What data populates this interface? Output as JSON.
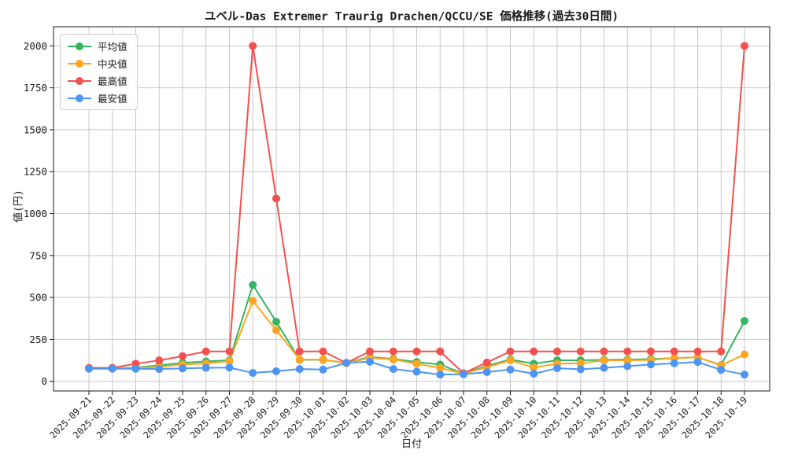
{
  "figure": {
    "title": "ユベル-Das Extremer Traurig Drachen/QCCU/SE 価格推移(過去30日間)",
    "xlabel": "日付",
    "ylabel": "値(円)"
  },
  "chart_data": {
    "type": "line",
    "title": "ユベル-Das Extremer Traurig Drachen/QCCU/SE 価格推移(過去30日間)",
    "xlabel": "日付",
    "ylabel": "値(円)",
    "grid": true,
    "legend_position": "upper left",
    "ylim": [
      -57,
      2114
    ],
    "yticks": [
      0,
      250,
      500,
      750,
      1000,
      1250,
      1500,
      1750,
      2000
    ],
    "x": [
      "2025-09-21",
      "2025-09-22",
      "2025-09-23",
      "2025-09-24",
      "2025-09-25",
      "2025-09-26",
      "2025-09-27",
      "2025-09-28",
      "2025-09-29",
      "2025-09-30",
      "2025-10-01",
      "2025-10-02",
      "2025-10-03",
      "2025-10-04",
      "2025-10-05",
      "2025-10-06",
      "2025-10-07",
      "2025-10-08",
      "2025-10-09",
      "2025-10-10",
      "2025-10-11",
      "2025-10-12",
      "2025-10-13",
      "2025-10-14",
      "2025-10-15",
      "2025-10-16",
      "2025-10-17",
      "2025-10-18",
      "2025-10-19"
    ],
    "series": [
      {
        "key": "average",
        "name": "平均値",
        "color": "#33b564",
        "values": [
          78,
          78,
          82,
          95,
          110,
          118,
          125,
          575,
          355,
          128,
          128,
          110,
          145,
          133,
          115,
          100,
          45,
          92,
          130,
          105,
          125,
          125,
          128,
          130,
          132,
          138,
          143,
          97,
          360
        ]
      },
      {
        "key": "median",
        "name": "中央値",
        "color": "#ffa51f",
        "values": [
          77,
          77,
          79,
          86,
          100,
          106,
          120,
          480,
          305,
          130,
          130,
          108,
          140,
          130,
          105,
          80,
          45,
          84,
          125,
          82,
          105,
          108,
          124,
          125,
          127,
          138,
          143,
          95,
          160
        ]
      },
      {
        "key": "max",
        "name": "最高値",
        "color": "#f4514e",
        "values": [
          80,
          80,
          105,
          125,
          150,
          178,
          178,
          2000,
          1090,
          178,
          178,
          110,
          178,
          178,
          178,
          178,
          48,
          112,
          178,
          178,
          178,
          178,
          178,
          178,
          178,
          178,
          178,
          178,
          2000
        ]
      },
      {
        "key": "min",
        "name": "最安値",
        "color": "#4d95f5",
        "values": [
          75,
          75,
          75,
          73,
          77,
          80,
          82,
          50,
          60,
          73,
          70,
          110,
          117,
          73,
          57,
          40,
          42,
          55,
          70,
          45,
          78,
          72,
          80,
          90,
          100,
          107,
          115,
          68,
          40
        ]
      }
    ]
  }
}
